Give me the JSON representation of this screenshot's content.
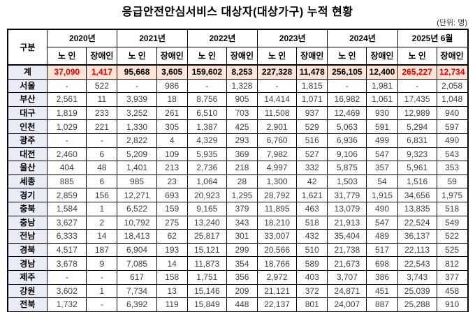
{
  "page": {
    "title": "응급안전안심서비스 대상자(대상가구) 누적 현황",
    "unit_note": "(단위: 명)"
  },
  "colors": {
    "total_row_bg": "#fce4d6",
    "label_col_bg": "#e9ecf5",
    "highlight_red": "#e60000",
    "data_text": "#404040",
    "border": "#000000"
  },
  "chart_data": {
    "type": "table",
    "title": "응급안전안심서비스 대상자(대상가구) 누적 현황",
    "unit": "(단위: 명)",
    "corner_header": "구분",
    "year_groups": [
      "2020년",
      "2021년",
      "2022년",
      "2023년",
      "2024년",
      "2025년 6월"
    ],
    "sub_headers": [
      "노 인",
      "장애인"
    ],
    "red_highlight": {
      "row": "계",
      "value_indices": [
        0,
        1,
        10,
        11
      ]
    },
    "rows": [
      {
        "label": "계",
        "is_total": true,
        "values": [
          "37,090",
          "1,417",
          "95,668",
          "3,605",
          "159,602",
          "8,253",
          "227,328",
          "11,478",
          "256,105",
          "12,400",
          "265,227",
          "12,734"
        ]
      },
      {
        "label": "서울",
        "is_total": false,
        "values": [
          "-",
          "522",
          "-",
          "986",
          "-",
          "1,328",
          "-",
          "1,815",
          "-",
          "1,981",
          "-",
          "2,058"
        ]
      },
      {
        "label": "부산",
        "is_total": false,
        "values": [
          "2,561",
          "11",
          "3,939",
          "18",
          "8,756",
          "905",
          "14,414",
          "1,071",
          "16,982",
          "1,061",
          "17,435",
          "1,048"
        ]
      },
      {
        "label": "대구",
        "is_total": false,
        "values": [
          "1,819",
          "233",
          "3,252",
          "261",
          "6,510",
          "703",
          "11,508",
          "937",
          "12,469",
          "930",
          "12,989",
          "940"
        ]
      },
      {
        "label": "인천",
        "is_total": false,
        "values": [
          "1,029",
          "221",
          "1,330",
          "305",
          "1,387",
          "425",
          "2,901",
          "529",
          "5,063",
          "591",
          "5,294",
          "597"
        ]
      },
      {
        "label": "광주",
        "is_total": false,
        "values": [
          "-",
          "-",
          "2,822",
          "4",
          "4,329",
          "293",
          "6,760",
          "516",
          "6,936",
          "499",
          "6,831",
          "490"
        ]
      },
      {
        "label": "대전",
        "is_total": false,
        "values": [
          "2,460",
          "6",
          "5,209",
          "109",
          "5,935",
          "369",
          "7,982",
          "527",
          "9,106",
          "547",
          "9,323",
          "543"
        ]
      },
      {
        "label": "울산",
        "is_total": false,
        "values": [
          "404",
          "48",
          "1,401",
          "213",
          "2,736",
          "218",
          "4,997",
          "332",
          "5,875",
          "357",
          "5,961",
          "353"
        ]
      },
      {
        "label": "세종",
        "is_total": false,
        "values": [
          "885",
          "6",
          "985",
          "23",
          "1,064",
          "28",
          "1,300",
          "42",
          "1,503",
          "54",
          "1,516",
          "59"
        ]
      },
      {
        "label": "경기",
        "is_total": false,
        "values": [
          "2,859",
          "156",
          "12,271",
          "693",
          "20,923",
          "1,295",
          "28,792",
          "1,621",
          "31,779",
          "1,915",
          "34,656",
          "1,975"
        ]
      },
      {
        "label": "충북",
        "is_total": false,
        "values": [
          "1,584",
          "1",
          "6,522",
          "159",
          "9,165",
          "379",
          "11,895",
          "463",
          "13,079",
          "490",
          "13,835",
          "518"
        ]
      },
      {
        "label": "충남",
        "is_total": false,
        "values": [
          "3,627",
          "2",
          "10,792",
          "275",
          "13,240",
          "343",
          "18,210",
          "518",
          "21,913",
          "547",
          "22,524",
          "549"
        ]
      },
      {
        "label": "전남",
        "is_total": false,
        "values": [
          "6,333",
          "14",
          "18,413",
          "62",
          "25,817",
          "301",
          "33,007",
          "432",
          "35,404",
          "489",
          "36,137",
          "522"
        ]
      },
      {
        "label": "경북",
        "is_total": false,
        "values": [
          "4,517",
          "187",
          "6,904",
          "193",
          "15,121",
          "299",
          "20,566",
          "510",
          "21,738",
          "517",
          "22,113",
          "525"
        ]
      },
      {
        "label": "경남",
        "is_total": false,
        "values": [
          "3,678",
          "9",
          "7,085",
          "14",
          "11,873",
          "354",
          "18,766",
          "589",
          "21,673",
          "698",
          "22,543",
          "812"
        ]
      },
      {
        "label": "제주",
        "is_total": false,
        "values": [
          "-",
          "-",
          "617",
          "158",
          "1,751",
          "356",
          "2,972",
          "403",
          "3,707",
          "386",
          "3,743",
          "377"
        ]
      },
      {
        "label": "강원",
        "is_total": false,
        "values": [
          "3,602",
          "1",
          "7,734",
          "13",
          "15,146",
          "209",
          "21,121",
          "372",
          "24,871",
          "451",
          "25,039",
          "458"
        ]
      },
      {
        "label": "전북",
        "is_total": false,
        "values": [
          "1,732",
          "-",
          "6,392",
          "119",
          "15,849",
          "448",
          "22,137",
          "801",
          "24,007",
          "887",
          "25,288",
          "910"
        ]
      }
    ]
  }
}
